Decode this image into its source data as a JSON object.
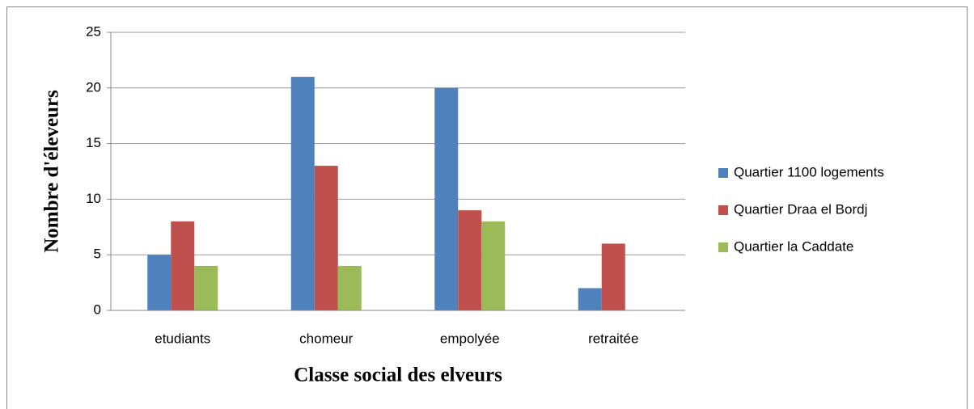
{
  "chart_data": {
    "type": "bar",
    "categories": [
      "etudiants",
      "chomeur",
      "empolyée",
      "retraitée"
    ],
    "series": [
      {
        "name": "Quartier 1100 logements",
        "color": "#4f81bd",
        "values": [
          5,
          21,
          20,
          2
        ]
      },
      {
        "name": "Quartier Draa el Bordj",
        "color": "#c0504d",
        "values": [
          8,
          13,
          9,
          6
        ]
      },
      {
        "name": "Quartier la Caddate",
        "color": "#9bbb59",
        "values": [
          4,
          4,
          8,
          0
        ]
      }
    ],
    "x_label": "Classe social des elveurs",
    "y_label": "Nombre d'éleveurs",
    "ylim": [
      0,
      25
    ],
    "yticks": [
      0,
      5,
      10,
      15,
      20,
      25
    ],
    "grid": true,
    "legend": "right"
  }
}
